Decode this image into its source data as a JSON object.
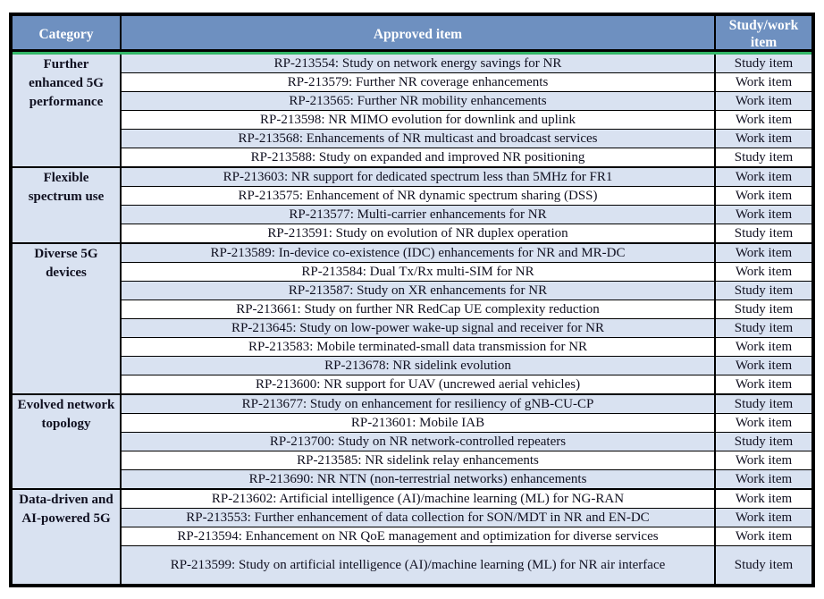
{
  "colors": {
    "header_bg": "#6E90C0",
    "header_text": "#FFFFFF",
    "row_alt_bg": "#D9E2F1",
    "row_bg": "#FFFFFF",
    "accent_green": "#33B768",
    "border": "#000000"
  },
  "table": {
    "columns": [
      "Category",
      "Approved item",
      "Study/work item"
    ],
    "groups": [
      {
        "category": "Further enhanced 5G performance",
        "rows": [
          {
            "item": "RP-213554: Study on network energy savings for NR",
            "status": "Study item"
          },
          {
            "item": "RP-213579: Further NR coverage enhancements",
            "status": "Work item"
          },
          {
            "item": "RP-213565: Further NR mobility enhancements",
            "status": "Work item"
          },
          {
            "item": "RP-213598: NR MIMO evolution for downlink and uplink",
            "status": "Work item"
          },
          {
            "item": "RP-213568: Enhancements of NR multicast and broadcast services",
            "status": "Work item"
          },
          {
            "item": "RP-213588: Study on expanded and improved NR positioning",
            "status": "Study item"
          }
        ]
      },
      {
        "category": "Flexible spectrum use",
        "rows": [
          {
            "item": "RP-213603: NR support for dedicated spectrum less than 5MHz for FR1",
            "status": "Work item"
          },
          {
            "item": "RP-213575: Enhancement of NR dynamic spectrum sharing (DSS)",
            "status": "Work item"
          },
          {
            "item": "RP-213577: Multi-carrier enhancements for NR",
            "status": "Work item"
          },
          {
            "item": "RP-213591: Study on evolution of NR duplex operation",
            "status": "Study item"
          }
        ]
      },
      {
        "category": "Diverse 5G devices",
        "rows": [
          {
            "item": "RP-213589: In-device co-existence (IDC) enhancements for NR and MR-DC",
            "status": "Work item"
          },
          {
            "item": "RP-213584: Dual Tx/Rx multi-SIM for NR",
            "status": "Work item"
          },
          {
            "item": "RP-213587: Study on XR enhancements for NR",
            "status": "Study item"
          },
          {
            "item": "RP-213661: Study on further NR RedCap UE complexity reduction",
            "status": "Study item"
          },
          {
            "item": "RP-213645: Study on low-power wake-up signal and receiver for NR",
            "status": "Study item"
          },
          {
            "item": "RP-213583: Mobile terminated-small data transmission for NR",
            "status": "Work item"
          },
          {
            "item": "RP-213678: NR sidelink evolution",
            "status": "Work item"
          },
          {
            "item": "RP-213600: NR support for UAV (uncrewed aerial vehicles)",
            "status": "Work item"
          }
        ]
      },
      {
        "category": "Evolved network topology",
        "rows": [
          {
            "item": "RP-213677: Study on enhancement for resiliency of gNB-CU-CP",
            "status": "Study item"
          },
          {
            "item": "RP-213601: Mobile IAB",
            "status": "Work item"
          },
          {
            "item": "RP-213700: Study on NR network-controlled repeaters",
            "status": "Study item"
          },
          {
            "item": "RP-213585: NR sidelink relay enhancements",
            "status": "Work item"
          },
          {
            "item": "RP-213690: NR NTN (non-terrestrial networks) enhancements",
            "status": "Work item"
          }
        ]
      },
      {
        "category": "Data-driven and AI-powered 5G",
        "rows": [
          {
            "item": "RP-213602: Artificial intelligence (AI)/machine learning (ML) for NG-RAN",
            "status": "Work item"
          },
          {
            "item": "RP-213553: Further enhancement of data collection for SON/MDT in NR and EN-DC",
            "status": "Work item"
          },
          {
            "item": "RP-213594: Enhancement on NR QoE management and optimization for diverse services",
            "status": "Work item"
          },
          {
            "item": "RP-213599: Study on artificial intelligence (AI)/machine learning (ML) for NR air interface",
            "status": "Study item"
          }
        ]
      }
    ]
  }
}
